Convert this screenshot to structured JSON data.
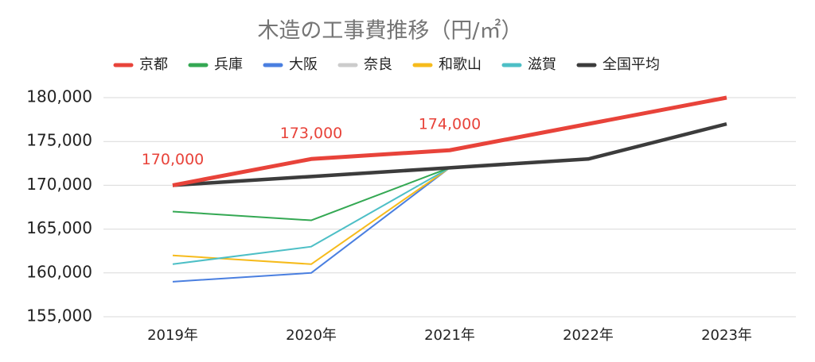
{
  "chart_data": {
    "type": "line",
    "title": "木造の工事費推移（円/㎡）",
    "categories": [
      "2019年",
      "2020年",
      "2021年",
      "2022年",
      "2023年"
    ],
    "series": [
      {
        "name": "京都",
        "color": "#e8433a",
        "values": [
          170000,
          173000,
          174000,
          177000,
          180000
        ],
        "value_labels": [
          "170,000",
          "173,000",
          "174,000",
          null,
          null
        ]
      },
      {
        "name": "兵庫",
        "color": "#34a853",
        "values": [
          167000,
          166000,
          172000,
          null,
          null
        ]
      },
      {
        "name": "大阪",
        "color": "#4a7fe0",
        "values": [
          159000,
          160000,
          172000,
          null,
          null
        ]
      },
      {
        "name": "奈良",
        "color": "#cccccc",
        "values": [
          170000,
          171000,
          172000,
          null,
          null
        ]
      },
      {
        "name": "和歌山",
        "color": "#f6bb1c",
        "values": [
          162000,
          161000,
          172000,
          null,
          null
        ]
      },
      {
        "name": "滋賀",
        "color": "#4dbfc6",
        "values": [
          161000,
          163000,
          172000,
          null,
          null
        ]
      },
      {
        "name": "全国平均",
        "color": "#3c3c3c",
        "values": [
          170000,
          171000,
          172000,
          173000,
          177000
        ]
      }
    ],
    "ylim": [
      155000,
      180000
    ],
    "yticks": [
      {
        "value": 155000,
        "label": "155,000"
      },
      {
        "value": 160000,
        "label": "160,000"
      },
      {
        "value": 165000,
        "label": "165,000"
      },
      {
        "value": 170000,
        "label": "170,000"
      },
      {
        "value": 175000,
        "label": "175,000"
      },
      {
        "value": 180000,
        "label": "180,000"
      }
    ],
    "grid": true
  }
}
